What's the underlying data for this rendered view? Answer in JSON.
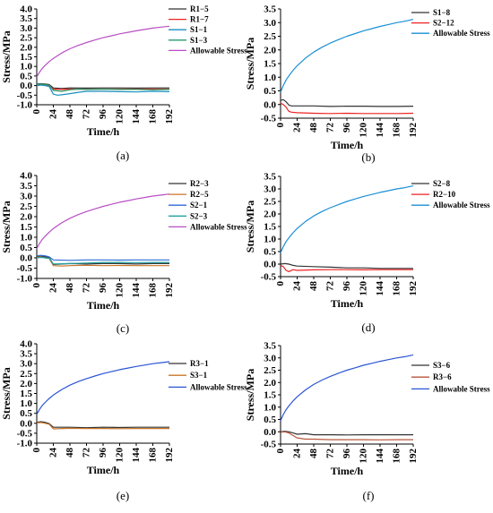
{
  "chart_data": [
    {
      "type": "line",
      "caption": "(a)",
      "xlabel": "Time/h",
      "ylabel": "Stress/MPa",
      "xlim": [
        0,
        192
      ],
      "ylim": [
        -1.0,
        4.0
      ],
      "yticks": [
        -1.0,
        -0.5,
        0.0,
        0.5,
        1.0,
        1.5,
        2.0,
        2.5,
        3.0,
        3.5,
        4.0
      ],
      "xticks": [
        0,
        24,
        48,
        72,
        96,
        120,
        144,
        168,
        192
      ],
      "legend": "top-right",
      "series": [
        {
          "name": "R1−5",
          "color": "#333333",
          "x": [
            0,
            6,
            12,
            18,
            24,
            36,
            48,
            72,
            96,
            120,
            144,
            168,
            192
          ],
          "y": [
            0.08,
            0.1,
            0.08,
            0.05,
            -0.12,
            -0.15,
            -0.12,
            -0.13,
            -0.12,
            -0.12,
            -0.13,
            -0.12,
            -0.12
          ]
        },
        {
          "name": "R1−7",
          "color": "#ee2222",
          "x": [
            0,
            6,
            12,
            18,
            24,
            36,
            48,
            72,
            96,
            120,
            144,
            168,
            192
          ],
          "y": [
            0.03,
            0.05,
            0.03,
            0.0,
            -0.18,
            -0.2,
            -0.18,
            -0.19,
            -0.18,
            -0.18,
            -0.18,
            -0.18,
            -0.18
          ]
        },
        {
          "name": "S1−1",
          "color": "#1a8fbf",
          "x": [
            0,
            6,
            12,
            18,
            24,
            30,
            36,
            48,
            60,
            72,
            96,
            120,
            144,
            168,
            192
          ],
          "y": [
            0.0,
            0.03,
            0.0,
            -0.05,
            -0.45,
            -0.5,
            -0.48,
            -0.42,
            -0.35,
            -0.3,
            -0.3,
            -0.32,
            -0.33,
            -0.3,
            -0.32
          ]
        },
        {
          "name": "S1−3",
          "color": "#2a9a6a",
          "x": [
            0,
            6,
            12,
            18,
            24,
            36,
            48,
            60,
            72,
            96,
            120,
            144,
            168,
            192
          ],
          "y": [
            0.06,
            0.08,
            0.05,
            0.02,
            -0.25,
            -0.3,
            -0.22,
            -0.18,
            -0.2,
            -0.18,
            -0.2,
            -0.2,
            -0.22,
            -0.2
          ]
        },
        {
          "name": "Allowable Stress",
          "color": "#b84fc4",
          "x": [
            0,
            4,
            8,
            12,
            18,
            24,
            36,
            48,
            60,
            72,
            84,
            96,
            108,
            120,
            132,
            144,
            156,
            168,
            180,
            192
          ],
          "y": [
            0.45,
            0.7,
            0.9,
            1.05,
            1.25,
            1.42,
            1.7,
            1.92,
            2.1,
            2.25,
            2.38,
            2.5,
            2.6,
            2.7,
            2.78,
            2.86,
            2.93,
            3.0,
            3.05,
            3.1
          ]
        }
      ]
    },
    {
      "type": "line",
      "caption": "(b)",
      "xlabel": "Time/h",
      "ylabel": "Stress/MPa",
      "xlim": [
        0,
        192
      ],
      "ylim": [
        -0.5,
        3.5
      ],
      "yticks": [
        -0.5,
        0.0,
        0.5,
        1.0,
        1.5,
        2.0,
        2.5,
        3.0,
        3.5
      ],
      "xticks": [
        0,
        24,
        48,
        72,
        96,
        120,
        144,
        168,
        192
      ],
      "legend": "top-right",
      "series": [
        {
          "name": "S1−8",
          "color": "#333333",
          "x": [
            0,
            4,
            8,
            12,
            16,
            24,
            48,
            72,
            96,
            120,
            144,
            168,
            192
          ],
          "y": [
            0.15,
            0.18,
            0.1,
            -0.02,
            -0.05,
            -0.05,
            -0.05,
            -0.07,
            -0.06,
            -0.06,
            -0.07,
            -0.07,
            -0.06
          ]
        },
        {
          "name": "S2−12",
          "color": "#ee2222",
          "x": [
            0,
            4,
            8,
            12,
            16,
            24,
            48,
            72,
            96,
            120,
            144,
            168,
            192
          ],
          "y": [
            0.05,
            0.0,
            -0.1,
            -0.25,
            -0.28,
            -0.3,
            -0.32,
            -0.33,
            -0.32,
            -0.33,
            -0.33,
            -0.33,
            -0.32
          ]
        },
        {
          "name": "Allowable Stress",
          "color": "#1a8fd6",
          "x": [
            0,
            4,
            8,
            12,
            18,
            24,
            36,
            48,
            60,
            72,
            84,
            96,
            108,
            120,
            132,
            144,
            156,
            168,
            180,
            192
          ],
          "y": [
            0.45,
            0.7,
            0.9,
            1.05,
            1.25,
            1.42,
            1.7,
            1.92,
            2.1,
            2.25,
            2.38,
            2.5,
            2.6,
            2.7,
            2.78,
            2.86,
            2.93,
            3.0,
            3.05,
            3.12
          ]
        }
      ]
    },
    {
      "type": "line",
      "caption": "(c)",
      "xlabel": "Time/h",
      "ylabel": "Stress/MPa",
      "xlim": [
        0,
        192
      ],
      "ylim": [
        -1.0,
        4.0
      ],
      "yticks": [
        -1.0,
        -0.5,
        0.0,
        0.5,
        1.0,
        1.5,
        2.0,
        2.5,
        3.0,
        3.5,
        4.0
      ],
      "xticks": [
        0,
        24,
        48,
        72,
        96,
        120,
        144,
        168,
        192
      ],
      "legend": "top-right",
      "series": [
        {
          "name": "R2−3",
          "color": "#333333",
          "x": [
            0,
            6,
            12,
            18,
            24,
            36,
            48,
            72,
            96,
            120,
            144,
            168,
            192
          ],
          "y": [
            0.05,
            0.08,
            0.05,
            0.02,
            -0.32,
            -0.3,
            -0.28,
            -0.3,
            -0.28,
            -0.28,
            -0.3,
            -0.28,
            -0.28
          ]
        },
        {
          "name": "R2−5",
          "color": "#c9742a",
          "x": [
            0,
            6,
            12,
            18,
            24,
            36,
            48,
            72,
            96,
            120,
            144,
            168,
            192
          ],
          "y": [
            0.02,
            0.05,
            0.0,
            -0.03,
            -0.38,
            -0.4,
            -0.38,
            -0.36,
            -0.38,
            -0.37,
            -0.38,
            -0.38,
            -0.38
          ]
        },
        {
          "name": "S2−1",
          "color": "#2e6bd4",
          "x": [
            0,
            6,
            12,
            18,
            24,
            48,
            72,
            96,
            120,
            144,
            168,
            192
          ],
          "y": [
            0.1,
            0.12,
            0.1,
            0.05,
            -0.1,
            -0.12,
            -0.1,
            -0.1,
            -0.11,
            -0.1,
            -0.1,
            -0.1
          ]
        },
        {
          "name": "S2−3",
          "color": "#21a0a0",
          "x": [
            0,
            6,
            12,
            18,
            24,
            48,
            72,
            96,
            120,
            144,
            168,
            192
          ],
          "y": [
            0.0,
            0.02,
            0.0,
            -0.02,
            -0.3,
            -0.28,
            -0.25,
            -0.22,
            -0.22,
            -0.23,
            -0.22,
            -0.22
          ]
        },
        {
          "name": "Allowable Stress",
          "color": "#b84fc4",
          "x": [
            0,
            4,
            8,
            12,
            18,
            24,
            36,
            48,
            60,
            72,
            84,
            96,
            108,
            120,
            132,
            144,
            156,
            168,
            180,
            192
          ],
          "y": [
            0.45,
            0.7,
            0.9,
            1.05,
            1.25,
            1.42,
            1.7,
            1.92,
            2.1,
            2.25,
            2.38,
            2.5,
            2.6,
            2.7,
            2.78,
            2.86,
            2.93,
            3.0,
            3.05,
            3.1
          ]
        }
      ]
    },
    {
      "type": "line",
      "caption": "(d)",
      "xlabel": "Time/h",
      "ylabel": "Stress/MPa",
      "xlim": [
        0,
        192
      ],
      "ylim": [
        -0.5,
        3.5
      ],
      "yticks": [
        -0.5,
        0.0,
        0.5,
        1.0,
        1.5,
        2.0,
        2.5,
        3.0,
        3.5
      ],
      "xticks": [
        0,
        24,
        48,
        72,
        96,
        120,
        144,
        168,
        192
      ],
      "legend": "top-right",
      "series": [
        {
          "name": "S2−8",
          "color": "#333333",
          "x": [
            0,
            6,
            12,
            18,
            24,
            48,
            72,
            96,
            120,
            144,
            168,
            192
          ],
          "y": [
            0.0,
            0.02,
            0.0,
            -0.05,
            -0.08,
            -0.1,
            -0.12,
            -0.15,
            -0.15,
            -0.17,
            -0.17,
            -0.17
          ]
        },
        {
          "name": "R2−10",
          "color": "#ee2222",
          "x": [
            0,
            4,
            8,
            12,
            18,
            24,
            48,
            72,
            96,
            120,
            144,
            168,
            192
          ],
          "y": [
            -0.05,
            -0.1,
            -0.25,
            -0.3,
            -0.22,
            -0.25,
            -0.23,
            -0.22,
            -0.22,
            -0.23,
            -0.22,
            -0.22,
            -0.22
          ]
        },
        {
          "name": "Allowable Stress",
          "color": "#1a8fd6",
          "x": [
            0,
            4,
            8,
            12,
            18,
            24,
            36,
            48,
            60,
            72,
            84,
            96,
            108,
            120,
            132,
            144,
            156,
            168,
            180,
            192
          ],
          "y": [
            0.45,
            0.7,
            0.9,
            1.05,
            1.25,
            1.42,
            1.7,
            1.92,
            2.1,
            2.25,
            2.38,
            2.5,
            2.6,
            2.7,
            2.78,
            2.86,
            2.93,
            3.0,
            3.05,
            3.12
          ]
        }
      ]
    },
    {
      "type": "line",
      "caption": "(e)",
      "xlabel": "Time/h",
      "ylabel": "Stress/MPa",
      "xlim": [
        0,
        192
      ],
      "ylim": [
        -1.0,
        4.0
      ],
      "yticks": [
        -1.0,
        -0.5,
        0.0,
        0.5,
        1.0,
        1.5,
        2.0,
        2.5,
        3.0,
        3.5,
        4.0
      ],
      "xticks": [
        0,
        24,
        48,
        72,
        96,
        120,
        144,
        168,
        192
      ],
      "legend": "top-right",
      "series": [
        {
          "name": "R3−1",
          "color": "#333333",
          "x": [
            0,
            6,
            12,
            18,
            24,
            48,
            72,
            96,
            120,
            144,
            168,
            192
          ],
          "y": [
            0.05,
            0.08,
            0.05,
            -0.02,
            -0.2,
            -0.2,
            -0.22,
            -0.2,
            -0.21,
            -0.2,
            -0.2,
            -0.2
          ]
        },
        {
          "name": "S3−1",
          "color": "#c9742a",
          "x": [
            0,
            6,
            12,
            18,
            24,
            48,
            72,
            96,
            120,
            144,
            168,
            192
          ],
          "y": [
            0.02,
            0.04,
            0.0,
            -0.05,
            -0.28,
            -0.25,
            -0.26,
            -0.26,
            -0.27,
            -0.26,
            -0.26,
            -0.26
          ]
        },
        {
          "name": "Allowable Stress",
          "color": "#2a55d4",
          "x": [
            0,
            4,
            8,
            12,
            18,
            24,
            36,
            48,
            60,
            72,
            84,
            96,
            108,
            120,
            132,
            144,
            156,
            168,
            180,
            192
          ],
          "y": [
            0.45,
            0.7,
            0.9,
            1.05,
            1.25,
            1.42,
            1.7,
            1.92,
            2.1,
            2.25,
            2.38,
            2.5,
            2.6,
            2.7,
            2.78,
            2.86,
            2.93,
            3.0,
            3.05,
            3.1
          ]
        }
      ]
    },
    {
      "type": "line",
      "caption": "(f)",
      "xlabel": "Time/h",
      "ylabel": "Stress/MPa",
      "xlim": [
        0,
        192
      ],
      "ylim": [
        -0.5,
        3.5
      ],
      "yticks": [
        -0.5,
        0.0,
        0.5,
        1.0,
        1.5,
        2.0,
        2.5,
        3.0,
        3.5
      ],
      "xticks": [
        0,
        24,
        48,
        72,
        96,
        120,
        144,
        168,
        192
      ],
      "legend": "top-right",
      "series": [
        {
          "name": "S3−6",
          "color": "#333333",
          "x": [
            0,
            6,
            12,
            18,
            24,
            36,
            48,
            72,
            96,
            120,
            144,
            168,
            192
          ],
          "y": [
            0.0,
            0.02,
            0.0,
            -0.05,
            -0.1,
            -0.08,
            -0.12,
            -0.12,
            -0.13,
            -0.12,
            -0.12,
            -0.12,
            -0.12
          ]
        },
        {
          "name": "R3−6",
          "color": "#b8553a",
          "x": [
            0,
            6,
            12,
            18,
            24,
            36,
            48,
            72,
            96,
            120,
            144,
            168,
            192
          ],
          "y": [
            -0.02,
            0.0,
            -0.05,
            -0.15,
            -0.25,
            -0.3,
            -0.3,
            -0.32,
            -0.32,
            -0.32,
            -0.33,
            -0.32,
            -0.32
          ]
        },
        {
          "name": "Allowable Stress",
          "color": "#2a55d4",
          "x": [
            0,
            4,
            8,
            12,
            18,
            24,
            36,
            48,
            60,
            72,
            84,
            96,
            108,
            120,
            132,
            144,
            156,
            168,
            180,
            192
          ],
          "y": [
            0.45,
            0.7,
            0.9,
            1.05,
            1.25,
            1.42,
            1.7,
            1.92,
            2.1,
            2.25,
            2.38,
            2.5,
            2.6,
            2.7,
            2.78,
            2.86,
            2.93,
            3.0,
            3.05,
            3.12
          ]
        }
      ]
    }
  ]
}
